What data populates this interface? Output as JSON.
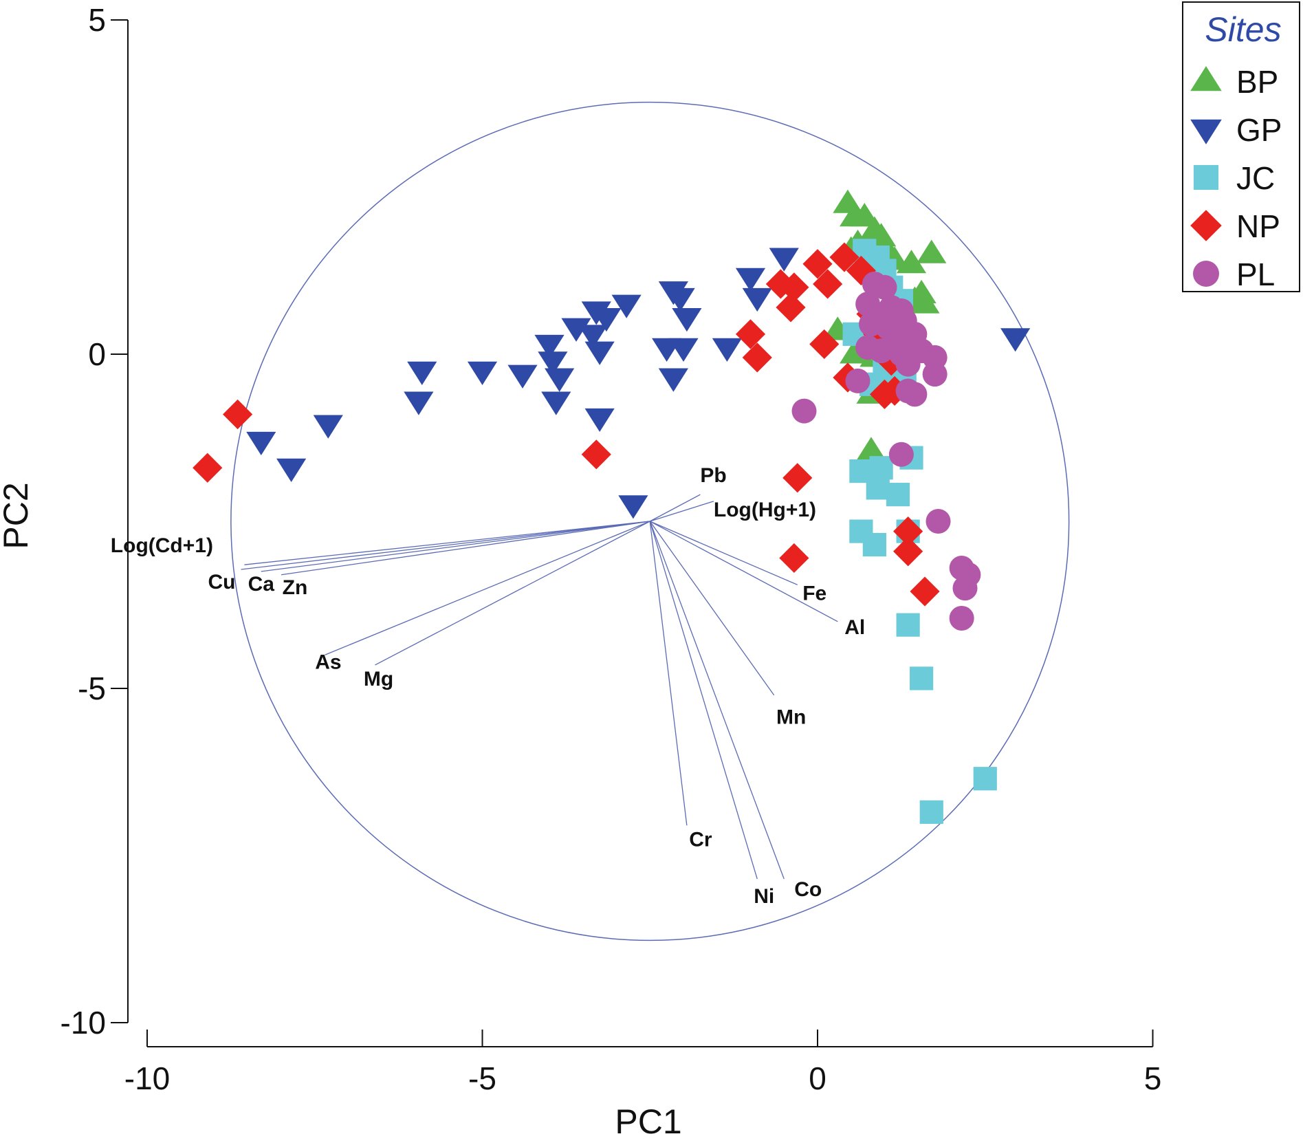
{
  "chart_data": {
    "type": "scatter",
    "xlabel": "PC1",
    "ylabel": "PC2",
    "xlim": [
      -10,
      5
    ],
    "ylim": [
      -10,
      5
    ],
    "x_ticks": [
      "-10",
      "-5",
      "0",
      "5"
    ],
    "y_ticks": [
      "5",
      "0",
      "-5",
      "-10"
    ],
    "grid": false,
    "legend_position": "top-right",
    "legend": {
      "title": "Sites",
      "title_color": "#2e4aa6",
      "entries": [
        "BP",
        "GP",
        "JC",
        "NP",
        "PL"
      ]
    },
    "correlation_circle": {
      "center": [
        -2.5,
        -2.5
      ],
      "radius": 6.25,
      "color": "#5b6bb5"
    },
    "vectors": [
      {
        "label": "Pb",
        "end": [
          -1.75,
          -2.1
        ]
      },
      {
        "label": "Log(Hg+1)",
        "end": [
          -1.55,
          -2.2
        ]
      },
      {
        "label": "Log(Cd+1)",
        "end": [
          -8.55,
          -3.15
        ]
      },
      {
        "label": "Cu",
        "end": [
          -8.6,
          -3.22
        ]
      },
      {
        "label": "Ca",
        "end": [
          -8.3,
          -3.25
        ]
      },
      {
        "label": "Zn",
        "end": [
          -8.0,
          -3.3
        ]
      },
      {
        "label": "As",
        "end": [
          -7.35,
          -4.5
        ]
      },
      {
        "label": "Mg",
        "end": [
          -6.6,
          -4.65
        ]
      },
      {
        "label": "Fe",
        "end": [
          -0.3,
          -3.45
        ]
      },
      {
        "label": "Al",
        "end": [
          0.3,
          -4.0
        ]
      },
      {
        "label": "Mn",
        "end": [
          -0.65,
          -5.1
        ]
      },
      {
        "label": "Cr",
        "end": [
          -1.95,
          -7.05
        ]
      },
      {
        "label": "Ni",
        "end": [
          -0.9,
          -7.85
        ]
      },
      {
        "label": "Co",
        "end": [
          -0.5,
          -7.85
        ]
      }
    ],
    "series": [
      {
        "name": "BP",
        "marker": "triangle-up",
        "color": "#5ab54a",
        "points": [
          [
            0.45,
            2.25
          ],
          [
            0.55,
            2.05
          ],
          [
            0.7,
            2.05
          ],
          [
            0.85,
            1.85
          ],
          [
            0.95,
            1.75
          ],
          [
            0.6,
            1.65
          ],
          [
            0.8,
            1.6
          ],
          [
            1.0,
            1.6
          ],
          [
            0.5,
            1.55
          ],
          [
            0.9,
            1.5
          ],
          [
            1.15,
            1.4
          ],
          [
            1.7,
            1.5
          ],
          [
            1.4,
            1.35
          ],
          [
            1.55,
            0.9
          ],
          [
            1.2,
            0.85
          ],
          [
            1.45,
            0.8
          ],
          [
            1.6,
            0.75
          ],
          [
            0.3,
            0.35
          ],
          [
            0.7,
            0.3
          ],
          [
            1.1,
            0.25
          ],
          [
            0.55,
            0.0
          ],
          [
            0.85,
            -0.05
          ],
          [
            1.15,
            -0.3
          ],
          [
            0.8,
            -0.6
          ],
          [
            0.8,
            -1.45
          ]
        ]
      },
      {
        "name": "GP",
        "marker": "triangle-down",
        "color": "#2e4aa6",
        "points": [
          [
            -8.3,
            -1.3
          ],
          [
            -7.3,
            -1.05
          ],
          [
            -7.85,
            -1.7
          ],
          [
            -5.9,
            -0.25
          ],
          [
            -5.95,
            -0.7
          ],
          [
            -5.0,
            -0.25
          ],
          [
            -4.4,
            -0.3
          ],
          [
            -4.0,
            0.15
          ],
          [
            -3.95,
            -0.1
          ],
          [
            -3.85,
            -0.35
          ],
          [
            -3.9,
            -0.7
          ],
          [
            -3.6,
            0.4
          ],
          [
            -3.35,
            0.3
          ],
          [
            -3.3,
            0.65
          ],
          [
            -3.15,
            0.55
          ],
          [
            -3.25,
            0.05
          ],
          [
            -3.25,
            -0.95
          ],
          [
            -2.85,
            0.75
          ],
          [
            -2.75,
            -2.25
          ],
          [
            -2.25,
            0.1
          ],
          [
            -2.15,
            0.95
          ],
          [
            -2.05,
            0.85
          ],
          [
            -2.0,
            0.1
          ],
          [
            -2.15,
            -0.35
          ],
          [
            -1.95,
            0.55
          ],
          [
            -1.35,
            0.1
          ],
          [
            -1.0,
            1.15
          ],
          [
            -0.9,
            0.85
          ],
          [
            -0.5,
            1.45
          ],
          [
            2.95,
            0.25
          ]
        ]
      },
      {
        "name": "JC",
        "marker": "square",
        "color": "#6ccbd9",
        "points": [
          [
            0.7,
            1.55
          ],
          [
            0.9,
            1.45
          ],
          [
            1.0,
            1.25
          ],
          [
            1.1,
            1.0
          ],
          [
            1.25,
            0.8
          ],
          [
            0.55,
            0.3
          ],
          [
            0.85,
            0.1
          ],
          [
            1.0,
            -0.15
          ],
          [
            0.8,
            -0.45
          ],
          [
            1.1,
            -0.25
          ],
          [
            1.3,
            -0.3
          ],
          [
            0.65,
            -1.75
          ],
          [
            0.95,
            -1.7
          ],
          [
            1.4,
            -1.55
          ],
          [
            0.9,
            -2.0
          ],
          [
            1.2,
            -2.1
          ],
          [
            0.65,
            -2.65
          ],
          [
            0.85,
            -2.85
          ],
          [
            1.35,
            -2.65
          ],
          [
            1.35,
            -4.05
          ],
          [
            1.55,
            -4.85
          ],
          [
            2.5,
            -6.35
          ],
          [
            1.7,
            -6.85
          ]
        ]
      },
      {
        "name": "NP",
        "marker": "diamond",
        "color": "#e8231f",
        "points": [
          [
            -8.65,
            -0.9
          ],
          [
            -9.1,
            -1.7
          ],
          [
            -3.3,
            -1.5
          ],
          [
            -1.0,
            0.3
          ],
          [
            -0.9,
            -0.05
          ],
          [
            -0.55,
            1.05
          ],
          [
            -0.35,
            1.0
          ],
          [
            -0.4,
            0.7
          ],
          [
            0.0,
            1.35
          ],
          [
            0.15,
            1.05
          ],
          [
            0.4,
            1.45
          ],
          [
            0.65,
            1.25
          ],
          [
            0.1,
            0.15
          ],
          [
            0.8,
            0.6
          ],
          [
            0.9,
            0.3
          ],
          [
            1.1,
            -0.1
          ],
          [
            0.45,
            -0.35
          ],
          [
            1.0,
            -0.6
          ],
          [
            1.15,
            -0.55
          ],
          [
            -0.3,
            -1.85
          ],
          [
            -0.35,
            -3.05
          ],
          [
            1.35,
            -2.65
          ],
          [
            1.35,
            -2.95
          ],
          [
            1.6,
            -3.55
          ]
        ]
      },
      {
        "name": "PL",
        "marker": "circle",
        "color": "#b358a8",
        "points": [
          [
            0.85,
            1.05
          ],
          [
            1.0,
            1.0
          ],
          [
            0.75,
            0.75
          ],
          [
            1.1,
            0.7
          ],
          [
            0.95,
            0.55
          ],
          [
            1.25,
            0.65
          ],
          [
            0.8,
            0.45
          ],
          [
            1.05,
            0.4
          ],
          [
            1.3,
            0.5
          ],
          [
            1.45,
            0.3
          ],
          [
            1.15,
            0.2
          ],
          [
            0.75,
            0.1
          ],
          [
            0.95,
            0.05
          ],
          [
            1.25,
            0.0
          ],
          [
            1.55,
            0.05
          ],
          [
            1.75,
            -0.05
          ],
          [
            1.35,
            -0.15
          ],
          [
            0.6,
            -0.4
          ],
          [
            1.35,
            -0.55
          ],
          [
            1.45,
            -0.6
          ],
          [
            1.75,
            -0.3
          ],
          [
            -0.2,
            -0.85
          ],
          [
            1.25,
            -1.5
          ],
          [
            1.8,
            -2.5
          ],
          [
            2.15,
            -3.2
          ],
          [
            2.25,
            -3.3
          ],
          [
            2.2,
            -3.5
          ],
          [
            2.15,
            -3.95
          ]
        ]
      }
    ]
  }
}
